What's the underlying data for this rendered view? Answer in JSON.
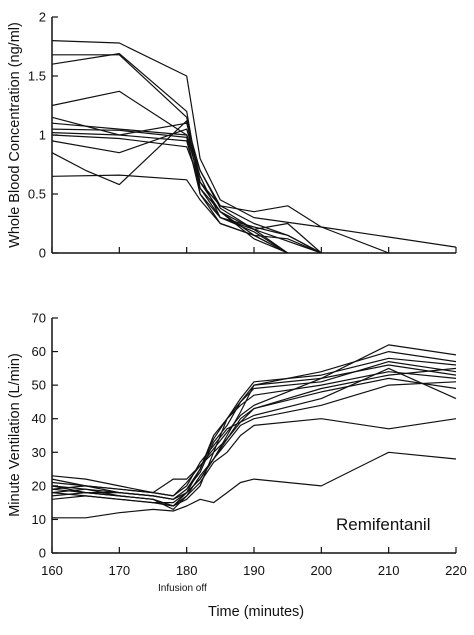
{
  "chart_data": [
    {
      "type": "line",
      "ylabel": "Whole Blood Concentration (ng/ml)",
      "xlim": [
        160,
        220
      ],
      "ylim": [
        0,
        2
      ],
      "xticks": [
        "160",
        "170",
        "180",
        "190",
        "200",
        "210",
        "220"
      ],
      "yticks": [
        "0",
        "0.5",
        "1",
        "1.5",
        "2"
      ],
      "xtick_labels_visible": false,
      "grid": false,
      "series": [
        {
          "x": [
            160,
            170,
            180,
            182,
            185,
            190,
            200,
            220
          ],
          "y": [
            1.8,
            1.78,
            1.5,
            0.8,
            0.45,
            0.3,
            0.22,
            0.05
          ]
        },
        {
          "x": [
            160,
            170,
            180,
            182,
            185,
            190,
            195,
            200
          ],
          "y": [
            1.68,
            1.68,
            1.15,
            0.6,
            0.4,
            0.25,
            0.15,
            0.0
          ]
        },
        {
          "x": [
            160,
            170,
            180,
            182,
            185,
            190,
            195
          ],
          "y": [
            1.6,
            1.69,
            1.2,
            0.55,
            0.35,
            0.2,
            0.0
          ]
        },
        {
          "x": [
            160,
            170,
            180,
            182,
            185,
            190,
            195,
            200,
            210
          ],
          "y": [
            1.25,
            1.37,
            1.0,
            0.7,
            0.4,
            0.35,
            0.4,
            0.22,
            0.0
          ]
        },
        {
          "x": [
            160,
            170,
            180,
            182,
            185,
            190,
            195,
            200
          ],
          "y": [
            1.15,
            1.0,
            1.1,
            0.7,
            0.38,
            0.2,
            0.25,
            0.0
          ]
        },
        {
          "x": [
            160,
            170,
            180,
            182,
            185,
            190,
            195
          ],
          "y": [
            1.05,
            1.04,
            0.98,
            0.5,
            0.3,
            0.18,
            0.0
          ]
        },
        {
          "x": [
            160,
            170,
            180,
            182,
            185,
            190,
            195,
            200
          ],
          "y": [
            1.02,
            1.0,
            0.95,
            0.55,
            0.3,
            0.2,
            0.1,
            0.0
          ]
        },
        {
          "x": [
            160,
            170,
            180,
            182,
            185,
            190,
            195
          ],
          "y": [
            1.0,
            0.97,
            0.9,
            0.6,
            0.35,
            0.15,
            0.0
          ]
        },
        {
          "x": [
            160,
            170,
            180,
            182,
            185,
            190,
            195,
            200
          ],
          "y": [
            0.95,
            0.85,
            1.05,
            0.65,
            0.3,
            0.22,
            0.15,
            0.0
          ]
        },
        {
          "x": [
            160,
            165,
            170,
            180,
            182,
            185,
            190,
            195
          ],
          "y": [
            0.85,
            0.7,
            0.58,
            1.12,
            0.5,
            0.25,
            0.15,
            0.0
          ]
        },
        {
          "x": [
            160,
            170,
            180,
            182,
            185,
            190,
            195,
            200
          ],
          "y": [
            0.65,
            0.66,
            0.62,
            0.45,
            0.25,
            0.15,
            0.12,
            0.0
          ]
        },
        {
          "x": [
            160,
            170,
            180,
            182,
            185,
            190,
            195
          ],
          "y": [
            1.1,
            1.05,
            1.0,
            0.6,
            0.35,
            0.12,
            0.0
          ]
        }
      ]
    },
    {
      "type": "line",
      "ylabel": "Minute Ventilation (L/min)",
      "xlabel": "Time (minutes)",
      "xlim": [
        160,
        220
      ],
      "ylim": [
        0,
        70
      ],
      "xticks": [
        "160",
        "170",
        "180",
        "190",
        "200",
        "210",
        "220"
      ],
      "yticks": [
        "0",
        "10",
        "20",
        "30",
        "40",
        "50",
        "60",
        "70"
      ],
      "grid": false,
      "annotations": {
        "infusion_off": "Infusion off",
        "drug": "Remifentanil"
      },
      "series": [
        {
          "x": [
            160,
            165,
            170,
            175,
            178,
            180,
            182,
            184,
            186,
            188,
            190,
            200,
            210,
            220
          ],
          "y": [
            22,
            20,
            18,
            17,
            16,
            18,
            22,
            28,
            35,
            42,
            50,
            52,
            62,
            59
          ]
        },
        {
          "x": [
            160,
            165,
            170,
            175,
            178,
            180,
            182,
            184,
            186,
            188,
            190,
            200,
            210,
            220
          ],
          "y": [
            20,
            19,
            17,
            16,
            14,
            16,
            20,
            30,
            40,
            46,
            51,
            53,
            58,
            56
          ]
        },
        {
          "x": [
            160,
            165,
            170,
            175,
            178,
            180,
            182,
            184,
            186,
            188,
            190,
            200,
            210,
            220
          ],
          "y": [
            19,
            18,
            18,
            17,
            16,
            19,
            24,
            33,
            38,
            45,
            49,
            51,
            57,
            54
          ]
        },
        {
          "x": [
            160,
            165,
            170,
            175,
            178,
            180,
            182,
            184,
            186,
            188,
            190,
            200,
            210,
            220
          ],
          "y": [
            18,
            17,
            16,
            15,
            15,
            18,
            25,
            35,
            40,
            44,
            47,
            50,
            54,
            52
          ]
        },
        {
          "x": [
            160,
            165,
            170,
            175,
            178,
            180,
            182,
            184,
            186,
            188,
            190,
            200,
            210,
            220
          ],
          "y": [
            17,
            18,
            17,
            16,
            14,
            17,
            23,
            28,
            34,
            40,
            43,
            48,
            52,
            49
          ]
        },
        {
          "x": [
            160,
            165,
            170,
            175,
            178,
            180,
            182,
            184,
            186,
            188,
            190,
            200,
            210,
            220
          ],
          "y": [
            23,
            22,
            20,
            18,
            17,
            21,
            26,
            31,
            36,
            41,
            44,
            52,
            56,
            53
          ]
        },
        {
          "x": [
            160,
            165,
            170,
            175,
            178,
            180,
            182,
            184,
            186,
            188,
            190,
            200,
            210,
            220
          ],
          "y": [
            21,
            20,
            19,
            18,
            17,
            20,
            27,
            32,
            37,
            39,
            41,
            46,
            55,
            46
          ]
        },
        {
          "x": [
            160,
            165,
            170,
            175,
            178,
            180,
            182,
            184,
            186,
            188,
            190,
            200,
            210,
            220
          ],
          "y": [
            16,
            17,
            16,
            15,
            14,
            18,
            22,
            28,
            33,
            38,
            40,
            44,
            50,
            51
          ]
        },
        {
          "x": [
            160,
            165,
            170,
            175,
            178,
            180,
            182,
            184,
            186,
            188,
            190,
            200,
            210,
            220
          ],
          "y": [
            20,
            18,
            17,
            16,
            13,
            17,
            21,
            27,
            30,
            35,
            38,
            40,
            37,
            40
          ]
        },
        {
          "x": [
            160,
            165,
            170,
            175,
            178,
            180,
            182,
            184,
            186,
            188,
            190,
            200,
            210,
            220
          ],
          "y": [
            10.5,
            10.5,
            12,
            13,
            12.5,
            14,
            16,
            15,
            18,
            21,
            22,
            20,
            30,
            28
          ]
        },
        {
          "x": [
            160,
            165,
            170,
            175,
            178,
            180,
            182,
            184,
            186,
            188,
            190,
            200,
            210,
            220
          ],
          "y": [
            18,
            19,
            18,
            17,
            16,
            19,
            25,
            34,
            40,
            45,
            50,
            54,
            60,
            57
          ]
        },
        {
          "x": [
            160,
            165,
            170,
            175,
            178,
            180,
            182,
            184,
            186,
            188,
            190,
            200,
            210,
            220
          ],
          "y": [
            19,
            20,
            19,
            18,
            22,
            22,
            26,
            30,
            34,
            39,
            43,
            49,
            53,
            55
          ]
        }
      ]
    }
  ]
}
